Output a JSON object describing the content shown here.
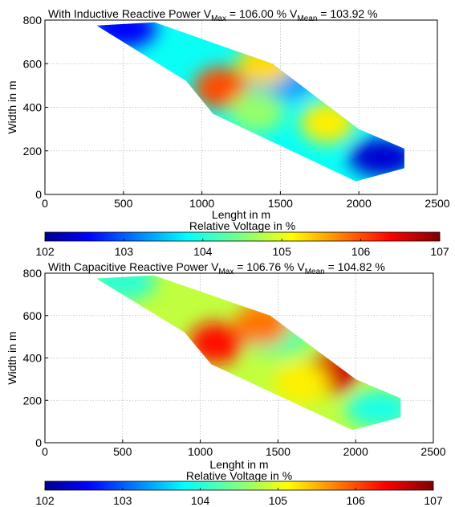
{
  "chart_data": [
    {
      "type": "heatmap",
      "title": {
        "prefix": "With Inductive Reactive Power",
        "vmax_symbol": "V",
        "vmax_sub": "Max",
        "vmax_text": "= 106.00 %",
        "vmean_symbol": "V",
        "vmean_sub": "Mean",
        "vmean_text": "= 103.92 %"
      },
      "xlabel": "Lenght in m",
      "ylabel": "Width in m",
      "xlim": [
        0,
        2500
      ],
      "ylim": [
        0,
        800
      ],
      "xticks": [
        "0",
        "500",
        "1000",
        "1500",
        "2000",
        "2500"
      ],
      "yticks": [
        "0",
        "200",
        "400",
        "600",
        "800"
      ],
      "grid": true,
      "vmax": 106.0,
      "vmean": 103.92,
      "region_outline": [
        [
          330,
          775
        ],
        [
          700,
          790
        ],
        [
          1450,
          600
        ],
        [
          2000,
          300
        ],
        [
          2290,
          210
        ],
        [
          2290,
          120
        ],
        [
          1980,
          60
        ],
        [
          1070,
          370
        ],
        [
          900,
          520
        ]
      ],
      "hotspots": [
        {
          "x": 1120,
          "y": 490,
          "value": 106.0
        },
        {
          "x": 1400,
          "y": 600,
          "value": 105.3
        },
        {
          "x": 1800,
          "y": 330,
          "value": 105.2
        },
        {
          "x": 1350,
          "y": 380,
          "value": 104.6
        }
      ],
      "coldspots": [
        {
          "x": 500,
          "y": 760,
          "value": 102.6
        },
        {
          "x": 2150,
          "y": 170,
          "value": 102.4
        },
        {
          "x": 1520,
          "y": 520,
          "value": 103.4
        }
      ],
      "colorbar": {
        "label": "Relative Voltage in %",
        "ticks": [
          "102",
          "103",
          "104",
          "105",
          "106",
          "107"
        ],
        "min": 102,
        "max": 107,
        "colormap": "jet"
      }
    },
    {
      "type": "heatmap",
      "title": {
        "prefix": "With Capacitive Reactive Power",
        "vmax_symbol": "V",
        "vmax_sub": "Max",
        "vmax_text": "= 106.76 %",
        "vmean_symbol": "V",
        "vmean_sub": "Mean",
        "vmean_text": "= 104.82 %"
      },
      "xlabel": "Lenght in m",
      "ylabel": "Width in m",
      "xlim": [
        0,
        2500
      ],
      "ylim": [
        0,
        800
      ],
      "xticks": [
        "0",
        "500",
        "1000",
        "1500",
        "2000",
        "2500"
      ],
      "yticks": [
        "0",
        "200",
        "400",
        "600",
        "800"
      ],
      "grid": true,
      "vmax": 106.76,
      "vmean": 104.82,
      "region_outline": [
        [
          330,
          775
        ],
        [
          700,
          790
        ],
        [
          1450,
          600
        ],
        [
          2000,
          300
        ],
        [
          2290,
          210
        ],
        [
          2290,
          120
        ],
        [
          1980,
          60
        ],
        [
          1070,
          370
        ],
        [
          900,
          520
        ]
      ],
      "hotspots": [
        {
          "x": 1100,
          "y": 470,
          "value": 106.3
        },
        {
          "x": 1850,
          "y": 330,
          "value": 106.6
        },
        {
          "x": 1400,
          "y": 560,
          "value": 105.8
        },
        {
          "x": 1650,
          "y": 280,
          "value": 105.2
        }
      ],
      "coldspots": [
        {
          "x": 500,
          "y": 760,
          "value": 104.1
        },
        {
          "x": 2150,
          "y": 160,
          "value": 104.0
        },
        {
          "x": 1500,
          "y": 500,
          "value": 104.3
        }
      ],
      "colorbar": {
        "label": "Relative Voltage in %",
        "ticks": [
          "102",
          "103",
          "104",
          "105",
          "106",
          "107"
        ],
        "min": 102,
        "max": 107,
        "colormap": "jet"
      }
    }
  ]
}
